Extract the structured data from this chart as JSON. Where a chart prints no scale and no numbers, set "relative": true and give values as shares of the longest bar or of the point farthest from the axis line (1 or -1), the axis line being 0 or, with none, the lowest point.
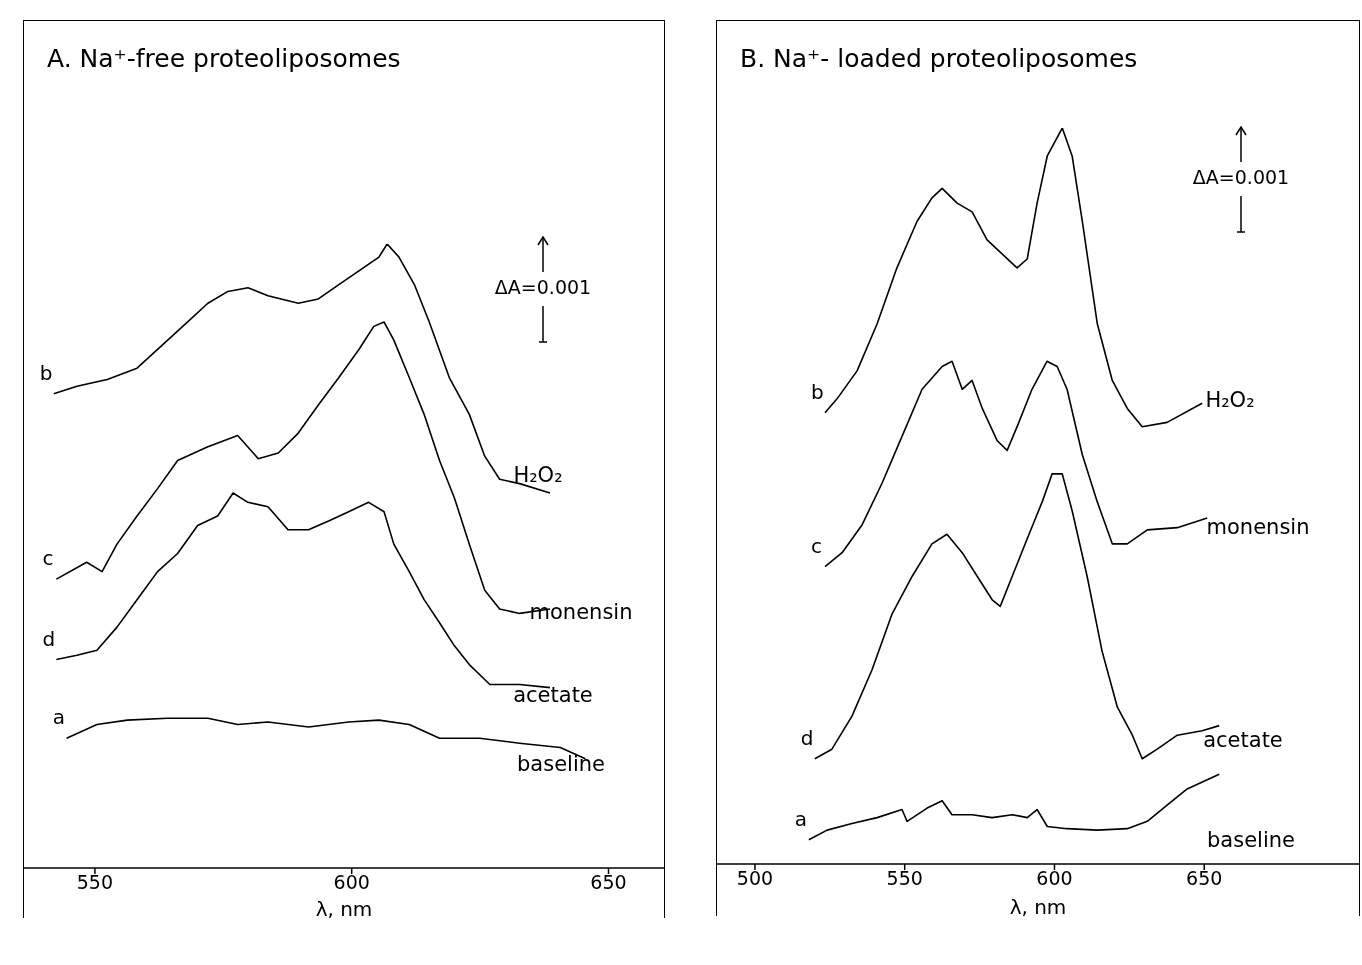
{
  "chart_data": [
    {
      "type": "line",
      "title": "A. Na⁺-free proteoliposomes",
      "xlabel": "λ, nm",
      "xlim": [
        536,
        661
      ],
      "xticks": [
        550,
        600,
        650
      ],
      "relative": true,
      "marker": "none",
      "line_style": "solid",
      "annotations": [
        "ΔA=0.001",
        "H₂O₂",
        "monensin",
        "acetate",
        "baseline"
      ],
      "series": [
        {
          "name": "b",
          "color": "#000000",
          "x": [
            542.0,
            546.5,
            552.4,
            558.2,
            562.2,
            567.1,
            572.0,
            575.9,
            579.8,
            583.7,
            589.6,
            593.5,
            597.5,
            601.4,
            605.3,
            606.9,
            609.2,
            612.2,
            615.1,
            619.0,
            622.9,
            625.9,
            628.8,
            632.7,
            638.6
          ],
          "values": [
            0.76,
            0.772,
            0.783,
            0.801,
            0.831,
            0.868,
            0.905,
            0.924,
            0.93,
            0.917,
            0.905,
            0.912,
            0.935,
            0.957,
            0.979,
            1.0,
            0.979,
            0.935,
            0.875,
            0.786,
            0.727,
            0.66,
            0.623,
            0.616,
            0.601
          ]
        },
        {
          "name": "c",
          "color": "#000000",
          "x": [
            542.5,
            548.4,
            551.4,
            554.3,
            558.2,
            562.2,
            566.1,
            572.0,
            577.8,
            581.8,
            585.7,
            589.6,
            593.5,
            597.5,
            601.4,
            604.3,
            606.3,
            608.2,
            611.2,
            614.1,
            617.1,
            620.0,
            622.9,
            625.9,
            628.8,
            632.7,
            638.6
          ],
          "values": [
            0.463,
            0.49,
            0.475,
            0.519,
            0.564,
            0.608,
            0.653,
            0.675,
            0.693,
            0.656,
            0.665,
            0.697,
            0.742,
            0.786,
            0.831,
            0.868,
            0.875,
            0.846,
            0.786,
            0.727,
            0.653,
            0.593,
            0.519,
            0.445,
            0.415,
            0.408,
            0.415
          ]
        },
        {
          "name": "d",
          "color": "#000000",
          "x": [
            542.5,
            546.5,
            550.4,
            554.3,
            558.2,
            562.2,
            566.1,
            570.0,
            573.9,
            576.9,
            579.8,
            583.7,
            587.6,
            591.6,
            595.5,
            599.4,
            603.3,
            606.3,
            608.2,
            611.2,
            614.1,
            617.1,
            620.0,
            622.9,
            626.9,
            632.7,
            638.6
          ],
          "values": [
            0.334,
            0.341,
            0.349,
            0.386,
            0.43,
            0.475,
            0.504,
            0.549,
            0.564,
            0.601,
            0.586,
            0.579,
            0.542,
            0.542,
            0.556,
            0.571,
            0.586,
            0.571,
            0.519,
            0.475,
            0.43,
            0.393,
            0.356,
            0.326,
            0.294,
            0.294,
            0.289
          ]
        },
        {
          "name": "a",
          "color": "#000000",
          "x": [
            544.5,
            550.4,
            556.3,
            564.1,
            572.0,
            577.8,
            583.7,
            591.6,
            599.4,
            605.3,
            611.2,
            617.1,
            624.9,
            632.7,
            640.6,
            645.5
          ],
          "values": [
            0.208,
            0.23,
            0.237,
            0.24,
            0.24,
            0.23,
            0.234,
            0.226,
            0.234,
            0.237,
            0.23,
            0.208,
            0.208,
            0.2,
            0.193,
            0.175
          ]
        }
      ]
    },
    {
      "type": "line",
      "title": "B. Na⁺- loaded proteoliposomes",
      "xlabel": "λ, nm",
      "xlim": [
        487,
        702
      ],
      "xticks": [
        500,
        550,
        600,
        650
      ],
      "relative": true,
      "marker": "none",
      "line_style": "solid",
      "annotations": [
        "ΔA=0.001",
        "H₂O₂",
        "monensin",
        "acetate",
        "baseline"
      ],
      "series": [
        {
          "name": "b",
          "color": "#000000",
          "x": [
            523.4,
            527.4,
            534.1,
            540.8,
            547.4,
            554.1,
            559.1,
            562.5,
            567.5,
            572.5,
            577.5,
            582.5,
            587.5,
            590.9,
            594.2,
            597.6,
            602.6,
            605.9,
            609.3,
            614.3,
            619.3,
            624.3,
            629.3,
            637.6,
            649.3
          ],
          "values": [
            0.613,
            0.632,
            0.67,
            0.734,
            0.81,
            0.873,
            0.905,
            0.918,
            0.898,
            0.886,
            0.848,
            0.829,
            0.81,
            0.822,
            0.898,
            0.962,
            1.0,
            0.962,
            0.873,
            0.734,
            0.657,
            0.619,
            0.594,
            0.6,
            0.626
          ]
        },
        {
          "name": "c",
          "color": "#000000",
          "x": [
            523.4,
            529.1,
            535.8,
            542.5,
            549.1,
            555.8,
            562.5,
            565.8,
            569.2,
            572.5,
            575.9,
            580.9,
            584.2,
            587.5,
            592.5,
            597.5,
            600.9,
            604.2,
            609.3,
            614.3,
            619.3,
            624.3,
            631.0,
            641.0,
            651.0
          ],
          "values": [
            0.404,
            0.423,
            0.461,
            0.518,
            0.581,
            0.645,
            0.676,
            0.683,
            0.645,
            0.657,
            0.619,
            0.575,
            0.562,
            0.594,
            0.645,
            0.683,
            0.676,
            0.645,
            0.556,
            0.492,
            0.435,
            0.435,
            0.454,
            0.457,
            0.47
          ]
        },
        {
          "name": "d",
          "color": "#000000",
          "x": [
            520.0,
            525.7,
            532.4,
            539.1,
            545.8,
            552.5,
            559.1,
            564.1,
            569.2,
            574.2,
            579.2,
            581.9,
            585.9,
            590.9,
            595.9,
            599.2,
            602.6,
            605.9,
            610.9,
            615.9,
            621.0,
            626.0,
            629.3,
            634.3,
            641.0,
            649.3,
            655.0
          ],
          "values": [
            0.143,
            0.156,
            0.201,
            0.264,
            0.34,
            0.391,
            0.435,
            0.448,
            0.423,
            0.391,
            0.359,
            0.35,
            0.391,
            0.442,
            0.492,
            0.53,
            0.53,
            0.48,
            0.391,
            0.289,
            0.213,
            0.175,
            0.143,
            0.156,
            0.175,
            0.181,
            0.188
          ]
        },
        {
          "name": "a",
          "color": "#000000",
          "x": [
            518.0,
            524.1,
            532.4,
            540.8,
            549.1,
            550.8,
            557.5,
            562.5,
            565.8,
            572.5,
            579.2,
            585.9,
            590.9,
            594.2,
            597.6,
            604.2,
            614.3,
            624.3,
            631.0,
            637.6,
            644.3,
            655.0
          ],
          "values": [
            0.033,
            0.046,
            0.055,
            0.063,
            0.074,
            0.058,
            0.076,
            0.086,
            0.067,
            0.067,
            0.063,
            0.067,
            0.063,
            0.074,
            0.051,
            0.048,
            0.046,
            0.048,
            0.058,
            0.08,
            0.102,
            0.122
          ]
        }
      ]
    }
  ]
}
